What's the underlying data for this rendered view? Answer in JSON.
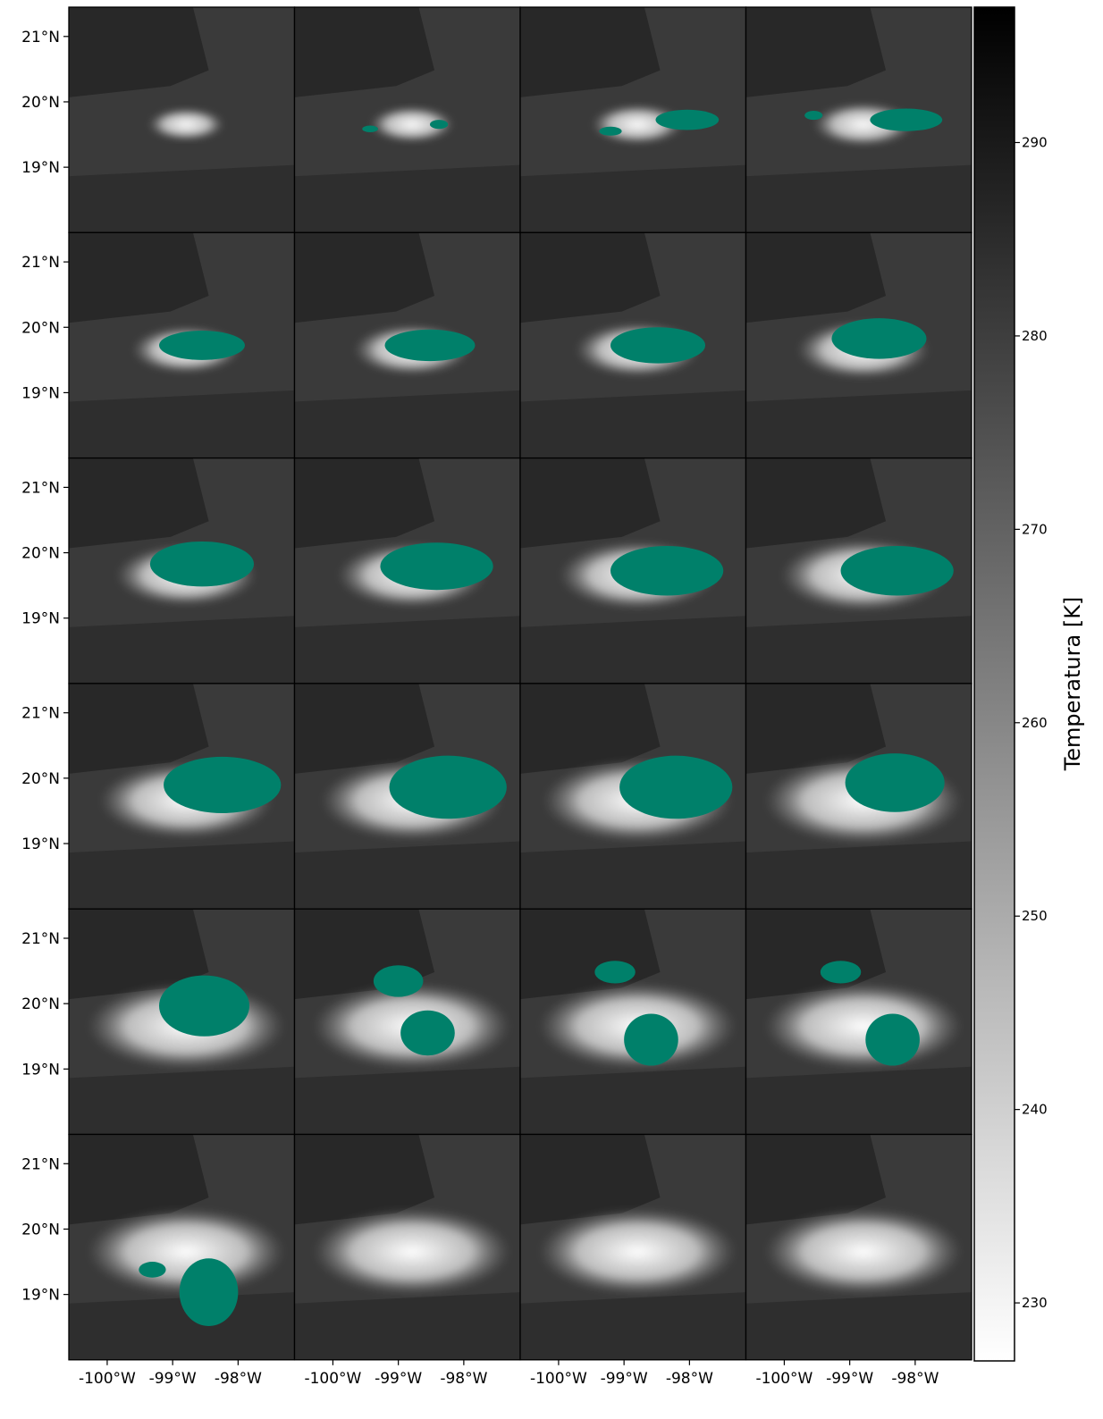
{
  "figure": {
    "grid": {
      "rows": 6,
      "cols": 4
    },
    "lat_labels": [
      "21°N",
      "20°N",
      "19°N"
    ],
    "lon_labels": [
      "-100°W",
      "-99°W",
      "-98°W"
    ],
    "mask_color": "#00806a",
    "image_palette": {
      "background_warm": "#3a3a3a",
      "cloud_cold": "#f2f2f2"
    },
    "colorbar": {
      "title": "Temperatura [K]",
      "ticks": [
        "290",
        "280",
        "270",
        "260",
        "250",
        "240",
        "230"
      ],
      "range": [
        227,
        297
      ],
      "colormap": "gray (white = cold, black = warm)"
    }
  }
}
